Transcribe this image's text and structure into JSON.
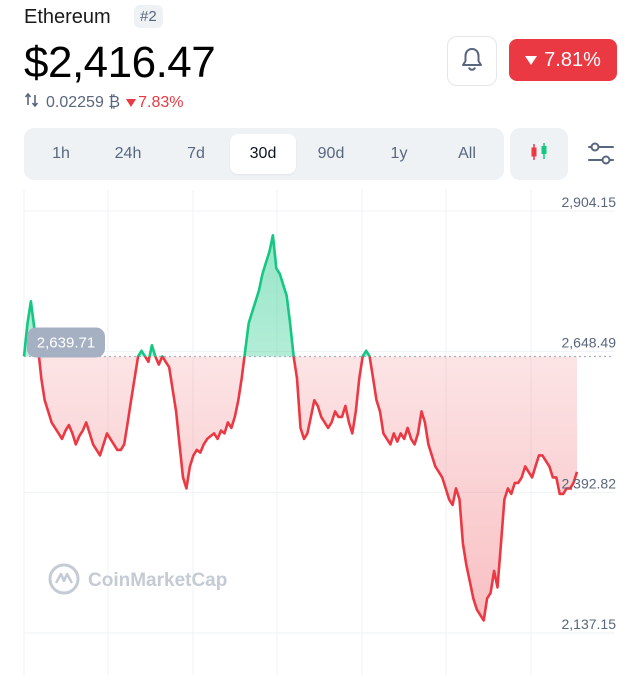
{
  "coin": {
    "name": "Ethereum",
    "rank": "#2"
  },
  "price": "$2,416.47",
  "btc": {
    "value": "0.02259 ₿",
    "change": "7.83%"
  },
  "change_24h": "7.81%",
  "tabs": [
    {
      "label": "1h",
      "active": false
    },
    {
      "label": "24h",
      "active": false
    },
    {
      "label": "7d",
      "active": false
    },
    {
      "label": "30d",
      "active": true
    },
    {
      "label": "90d",
      "active": false
    },
    {
      "label": "1y",
      "active": false
    },
    {
      "label": "All",
      "active": false
    }
  ],
  "icons": {
    "bell": "bell-icon",
    "candlestick": "candlestick-icon",
    "filter": "sliders-icon",
    "swap": "swap-arrows-icon"
  },
  "watermark": "CoinMarketCap",
  "colors": {
    "up": "#16c784",
    "down": "#ea3943",
    "accent_bg": "#eff2f5"
  },
  "chart_data": {
    "type": "line",
    "y_ticks": [
      "2,904.15",
      "2,648.49",
      "2,392.82",
      "2,137.15"
    ],
    "ylim": [
      2137.15,
      2904.15
    ],
    "baseline": 2639.71,
    "baseline_label": "2,639.71",
    "series": [
      {
        "values": [
          2640,
          2700,
          2740,
          2690,
          2660,
          2600,
          2560,
          2540,
          2520,
          2510,
          2500,
          2490,
          2505,
          2515,
          2500,
          2480,
          2495,
          2505,
          2520,
          2500,
          2480,
          2470,
          2460,
          2480,
          2500,
          2490,
          2480,
          2470,
          2470,
          2480,
          2520,
          2560,
          2600,
          2640,
          2650,
          2640,
          2630,
          2660,
          2640,
          2625,
          2640,
          2630,
          2620,
          2580,
          2540,
          2480,
          2420,
          2400,
          2440,
          2460,
          2470,
          2465,
          2480,
          2490,
          2495,
          2500,
          2490,
          2505,
          2500,
          2520,
          2510,
          2530,
          2560,
          2600,
          2650,
          2700,
          2720,
          2740,
          2760,
          2790,
          2810,
          2830,
          2860,
          2800,
          2790,
          2770,
          2750,
          2700,
          2640,
          2600,
          2510,
          2490,
          2500,
          2530,
          2560,
          2550,
          2530,
          2520,
          2510,
          2520,
          2540,
          2530,
          2530,
          2550,
          2520,
          2500,
          2540,
          2600,
          2640,
          2650,
          2640,
          2600,
          2560,
          2540,
          2500,
          2490,
          2480,
          2500,
          2485,
          2500,
          2490,
          2510,
          2490,
          2480,
          2500,
          2540,
          2520,
          2480,
          2460,
          2440,
          2430,
          2420,
          2400,
          2380,
          2370,
          2400,
          2380,
          2300,
          2260,
          2230,
          2200,
          2180,
          2170,
          2160,
          2200,
          2210,
          2250,
          2220,
          2300,
          2380,
          2400,
          2390,
          2410,
          2410,
          2420,
          2440,
          2430,
          2420,
          2440,
          2460,
          2460,
          2450,
          2440,
          2420,
          2420,
          2390,
          2390,
          2400,
          2400,
          2410,
          2430
        ],
        "color_up": "#16c784",
        "color_down": "#ea3943"
      }
    ],
    "grid": true
  }
}
